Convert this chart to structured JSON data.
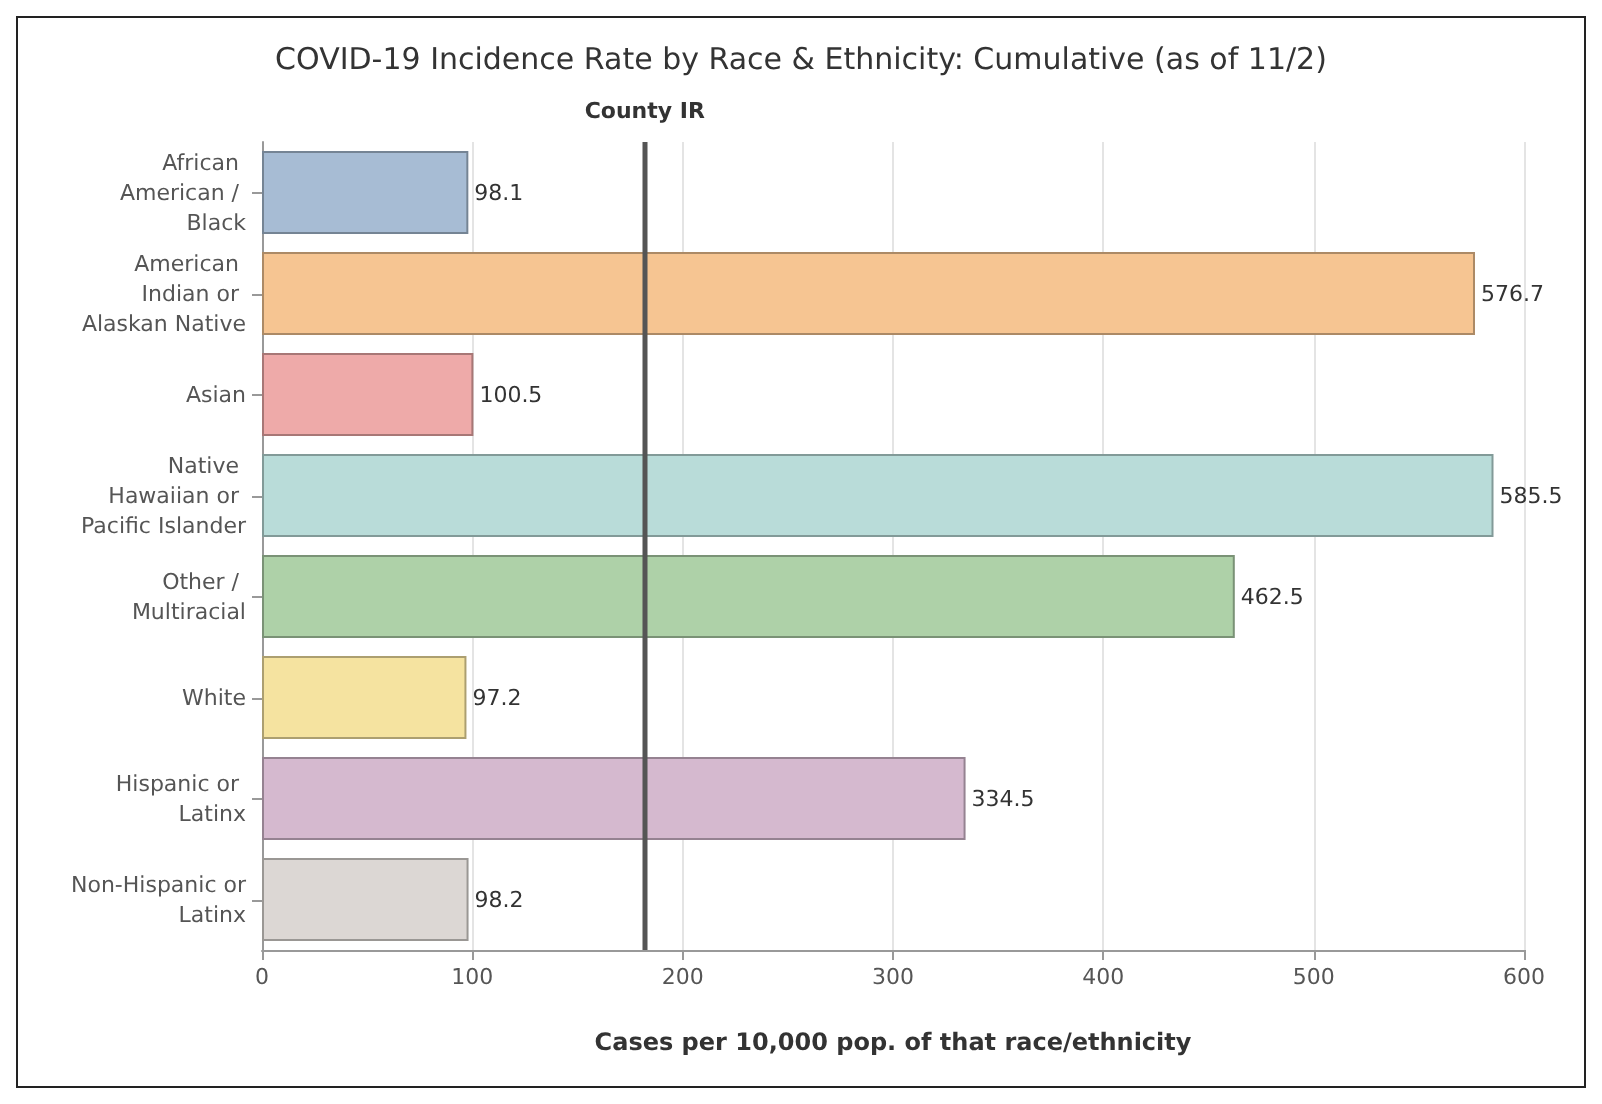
{
  "chart_data": {
    "type": "bar",
    "orientation": "horizontal",
    "title": "COVID-19 Incidence Rate by Race & Ethnicity: Cumulative (as of 11/2)",
    "xlabel": "Cases per 10,000 pop. of that race/ethnicity",
    "categories": [
      "African American / Black",
      "American Indian or Alaskan Native",
      "Asian",
      "Native Hawaiian or Pacific Islander",
      "Other / Multiracial",
      "White",
      "Hispanic or Latinx",
      "Non-Hispanic or Latinx"
    ],
    "values": [
      98.1,
      576.7,
      100.5,
      585.5,
      462.5,
      97.2,
      334.5,
      98.2
    ],
    "colors": [
      "#a7bcd4",
      "#f6c592",
      "#eeaaa9",
      "#b9dcd9",
      "#aed1a8",
      "#f5e3a0",
      "#d5b9cf",
      "#dcd7d4"
    ],
    "data_labels": true,
    "xlim": [
      0,
      600
    ],
    "xticks": [
      0,
      100,
      200,
      300,
      400,
      500,
      600
    ],
    "grid": "x",
    "ref_lines": [
      {
        "axis": "x",
        "value": 182,
        "label": "County IR",
        "color": "#555555"
      }
    ]
  }
}
